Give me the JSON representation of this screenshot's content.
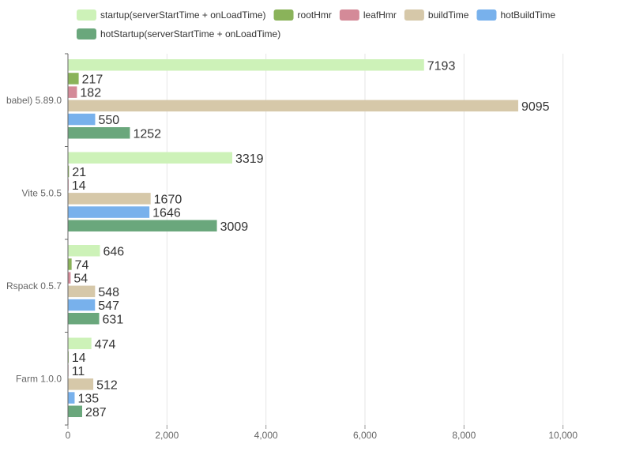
{
  "chart_data": {
    "type": "bar",
    "orientation": "horizontal",
    "categories": [
      "babel) 5.89.0",
      "Vite 5.0.5",
      "Rspack 0.5.7",
      "Farm 1.0.0"
    ],
    "series": [
      {
        "name": "startup(serverStartTime + onLoadTime)",
        "color": "#cdf2b8",
        "values": [
          7193,
          3319,
          646,
          474
        ]
      },
      {
        "name": "rootHmr",
        "color": "#8ab35a",
        "values": [
          217,
          21,
          74,
          14
        ]
      },
      {
        "name": "leafHmr",
        "color": "#d48a98",
        "values": [
          182,
          14,
          54,
          11
        ]
      },
      {
        "name": "buildTime",
        "color": "#d6c8a9",
        "values": [
          9095,
          1670,
          548,
          512
        ]
      },
      {
        "name": "hotBuildTime",
        "color": "#78b1ec",
        "values": [
          550,
          1646,
          547,
          135
        ]
      },
      {
        "name": "hotStartup(serverStartTime + onLoadTime)",
        "color": "#6aa77c",
        "values": [
          1252,
          3009,
          631,
          287
        ]
      }
    ],
    "xlim": [
      0,
      11000
    ],
    "x_ticks": [
      0,
      2000,
      4000,
      6000,
      8000,
      10000
    ],
    "x_tick_labels": [
      "0",
      "2,000",
      "4,000",
      "6,000",
      "8,000",
      "10,000"
    ],
    "grid": "vertical",
    "legend": "top",
    "data_labels": true
  }
}
